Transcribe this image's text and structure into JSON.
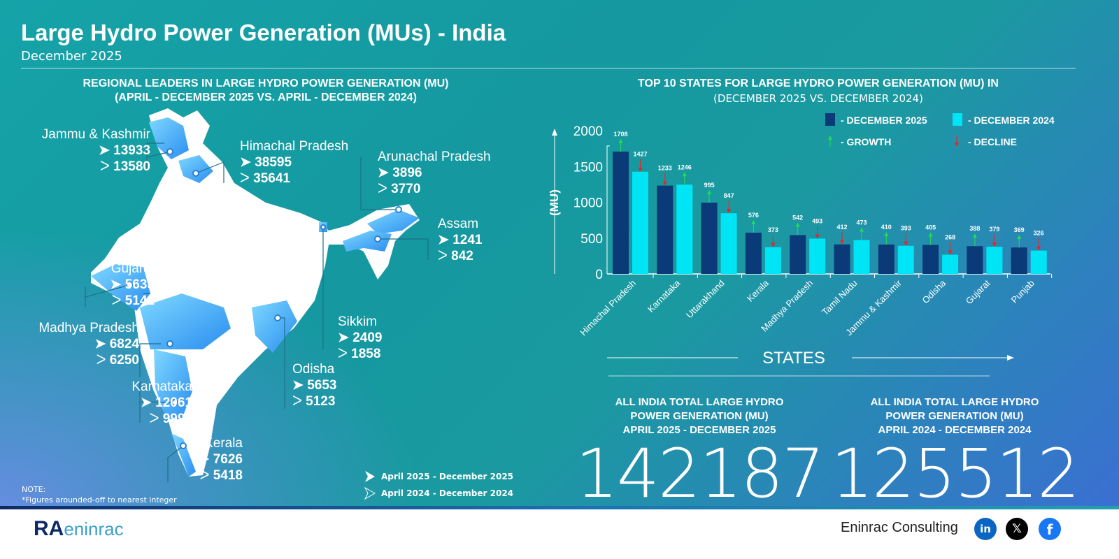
{
  "header": {
    "title": "Large Hydro Power Generation (MUs) - India",
    "subtitle": "December 2025"
  },
  "map": {
    "title": "REGIONAL LEADERS IN LARGE HYDRO POWER GENERATION (MU)",
    "subtitle": "(APRIL - DECEMBER 2025 VS. APRIL -  DECEMBER 2024)",
    "states": [
      {
        "name": "Jammu & Kashmir",
        "v2025": "13933",
        "v2024": "13580"
      },
      {
        "name": "Himachal Pradesh",
        "v2025": "38595",
        "v2024": "35641"
      },
      {
        "name": "Arunachal Pradesh",
        "v2025": "3896",
        "v2024": "3770"
      },
      {
        "name": "Assam",
        "v2025": "1241",
        "v2024": "842"
      },
      {
        "name": "Gujarat",
        "v2025": "5635",
        "v2024": "5141"
      },
      {
        "name": "Madhya Pradesh",
        "v2025": "6824",
        "v2024": "6250"
      },
      {
        "name": "Sikkim",
        "v2025": "2409",
        "v2024": "1858"
      },
      {
        "name": "Odisha",
        "v2025": "5653",
        "v2024": "5123"
      },
      {
        "name": "Karnataka",
        "v2025": "12061",
        "v2024": "9994"
      },
      {
        "name": "Kerala",
        "v2025": "7626",
        "v2024": "5418"
      }
    ],
    "legend": {
      "current": "April 2025 - December 2025",
      "previous": "April 2024 - December 2024"
    },
    "note_title": "NOTE:",
    "note": "*Figures arounded-off to nearest integer"
  },
  "chart_data": {
    "type": "bar",
    "title": "TOP 10 STATES FOR LARGE HYDRO POWER GENERATION (MU) IN",
    "subtitle": "(DECEMBER 2025 VS. DECEMBER 2024)",
    "xlabel": "STATES",
    "ylabel": "(MU)",
    "ylim": [
      0,
      2000
    ],
    "yticks": [
      "0",
      "500",
      "1000",
      "1500",
      "2000"
    ],
    "categories": [
      "Himachal Pradesh",
      "Karnataka",
      "Uttarakhand",
      "Kerala",
      "Madhya Pradesh",
      "Tamil Nadu",
      "Jammu & Kashmir",
      "Odisha",
      "Gujarat",
      "Punjab"
    ],
    "series": [
      {
        "name": "DECEMBER 2025",
        "color": "#0a3a78",
        "values": [
          1708,
          1233,
          995,
          576,
          542,
          412,
          410,
          405,
          388,
          369
        ]
      },
      {
        "name": "DECEMBER 2024",
        "color": "#00e5f5",
        "values": [
          1427,
          1246,
          847,
          373,
          493,
          473,
          393,
          268,
          379,
          326
        ]
      }
    ],
    "markers": {
      "growth": "GROWTH",
      "decline": "DECLINE",
      "growth_color": "#22dd55",
      "decline_color": "#ee2222"
    },
    "legend_dash": "-"
  },
  "totals": [
    {
      "label_lines": [
        "ALL INDIA TOTAL LARGE HYDRO",
        "POWER GENERATION (MU)",
        "APRIL 2025 - DECEMBER 2025"
      ],
      "value": "142187"
    },
    {
      "label_lines": [
        "ALL INDIA TOTAL LARGE HYDRO",
        "POWER GENERATION (MU)",
        "APRIL 2024 - DECEMBER 2024"
      ],
      "value": "125512"
    }
  ],
  "footer": {
    "logo": "RAC eninrac",
    "company": "Eninrac Consulting",
    "social": [
      "linkedin-icon",
      "x-icon",
      "facebook-icon"
    ]
  }
}
